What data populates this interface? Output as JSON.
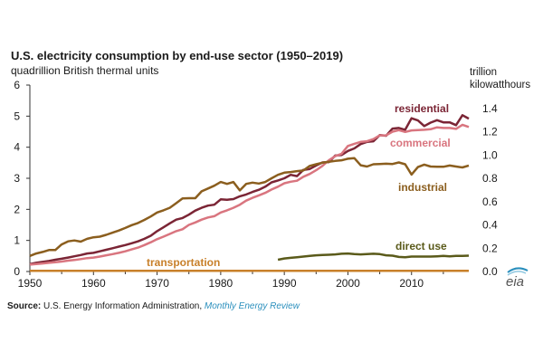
{
  "title": "U.S. electricity consumption by end-use sector (1950–2019)",
  "subtitle": "quadrillion British thermal units",
  "right_axis_unit_line1": "trillion",
  "right_axis_unit_line2": "kilowatthours",
  "source": {
    "label": "Source:",
    "text": "U.S. Energy Information Administration,",
    "link": "Monthly Energy Review"
  },
  "logo": {
    "text": "eia",
    "icon": "eia-logo-icon"
  },
  "chart_data": {
    "type": "line",
    "xlim": [
      1950,
      2019
    ],
    "ylim": [
      0,
      6
    ],
    "y2lim": [
      0,
      1.6
    ],
    "x_ticks": [
      1950,
      1960,
      1970,
      1980,
      1990,
      2000,
      2010
    ],
    "y_ticks": [
      0,
      1,
      2,
      3,
      4,
      5,
      6
    ],
    "y2_ticks": [
      "0.0",
      "0.2",
      "0.4",
      "0.6",
      "0.8",
      "1.0",
      "1.2",
      "1.4"
    ],
    "y2_tick_values": [
      0,
      0.2,
      0.4,
      0.6,
      0.8,
      1.0,
      1.2,
      1.4
    ],
    "grid": false,
    "series": [
      {
        "name": "residential",
        "color": "#7b2535",
        "x": [
          1950,
          1951,
          1952,
          1953,
          1954,
          1955,
          1956,
          1957,
          1958,
          1959,
          1960,
          1961,
          1962,
          1963,
          1964,
          1965,
          1966,
          1967,
          1968,
          1969,
          1970,
          1971,
          1972,
          1973,
          1974,
          1975,
          1976,
          1977,
          1978,
          1979,
          1980,
          1981,
          1982,
          1983,
          1984,
          1985,
          1986,
          1987,
          1988,
          1989,
          1990,
          1991,
          1992,
          1993,
          1994,
          1995,
          1996,
          1997,
          1998,
          1999,
          2000,
          2001,
          2002,
          2003,
          2004,
          2005,
          2006,
          2007,
          2008,
          2009,
          2010,
          2011,
          2012,
          2013,
          2014,
          2015,
          2016,
          2017,
          2018,
          2019
        ],
        "values": [
          0.24,
          0.28,
          0.31,
          0.34,
          0.38,
          0.41,
          0.45,
          0.49,
          0.53,
          0.58,
          0.6,
          0.65,
          0.7,
          0.75,
          0.8,
          0.85,
          0.91,
          0.97,
          1.05,
          1.15,
          1.3,
          1.42,
          1.55,
          1.67,
          1.72,
          1.83,
          1.96,
          2.05,
          2.12,
          2.15,
          2.32,
          2.31,
          2.33,
          2.42,
          2.48,
          2.56,
          2.63,
          2.73,
          2.87,
          2.93,
          3.0,
          3.11,
          3.07,
          3.27,
          3.3,
          3.41,
          3.51,
          3.52,
          3.73,
          3.75,
          3.88,
          3.96,
          4.1,
          4.17,
          4.19,
          4.39,
          4.37,
          4.6,
          4.62,
          4.56,
          4.93,
          4.86,
          4.68,
          4.79,
          4.87,
          4.8,
          4.8,
          4.71,
          5.03,
          4.92
        ]
      },
      {
        "name": "commercial",
        "color": "#d9757f",
        "x": [
          1950,
          1951,
          1952,
          1953,
          1954,
          1955,
          1956,
          1957,
          1958,
          1959,
          1960,
          1961,
          1962,
          1963,
          1964,
          1965,
          1966,
          1967,
          1968,
          1969,
          1970,
          1971,
          1972,
          1973,
          1974,
          1975,
          1976,
          1977,
          1978,
          1979,
          1980,
          1981,
          1982,
          1983,
          1984,
          1985,
          1986,
          1987,
          1988,
          1989,
          1990,
          1991,
          1992,
          1993,
          1994,
          1995,
          1996,
          1997,
          1998,
          1999,
          2000,
          2001,
          2002,
          2003,
          2004,
          2005,
          2006,
          2007,
          2008,
          2009,
          2010,
          2011,
          2012,
          2013,
          2014,
          2015,
          2016,
          2017,
          2018,
          2019
        ],
        "values": [
          0.22,
          0.24,
          0.26,
          0.28,
          0.3,
          0.32,
          0.35,
          0.37,
          0.4,
          0.43,
          0.45,
          0.48,
          0.52,
          0.56,
          0.6,
          0.65,
          0.71,
          0.77,
          0.85,
          0.94,
          1.04,
          1.12,
          1.21,
          1.3,
          1.36,
          1.5,
          1.58,
          1.67,
          1.74,
          1.78,
          1.9,
          1.97,
          2.05,
          2.15,
          2.28,
          2.37,
          2.45,
          2.53,
          2.64,
          2.73,
          2.84,
          2.89,
          2.92,
          3.05,
          3.14,
          3.26,
          3.4,
          3.58,
          3.71,
          3.79,
          4.04,
          4.11,
          4.17,
          4.19,
          4.26,
          4.38,
          4.38,
          4.5,
          4.55,
          4.49,
          4.54,
          4.55,
          4.56,
          4.58,
          4.64,
          4.62,
          4.62,
          4.59,
          4.72,
          4.65
        ]
      },
      {
        "name": "industrial",
        "color": "#8b5e1e",
        "x": [
          1950,
          1951,
          1952,
          1953,
          1954,
          1955,
          1956,
          1957,
          1958,
          1959,
          1960,
          1961,
          1962,
          1963,
          1964,
          1965,
          1966,
          1967,
          1968,
          1969,
          1970,
          1971,
          1972,
          1973,
          1974,
          1975,
          1976,
          1977,
          1978,
          1979,
          1980,
          1981,
          1982,
          1983,
          1984,
          1985,
          1986,
          1987,
          1988,
          1989,
          1990,
          1991,
          1992,
          1993,
          1994,
          1995,
          1996,
          1997,
          1998,
          1999,
          2000,
          2001,
          2002,
          2003,
          2004,
          2005,
          2006,
          2007,
          2008,
          2009,
          2010,
          2011,
          2012,
          2013,
          2014,
          2015,
          2016,
          2017,
          2018,
          2019
        ],
        "values": [
          0.5,
          0.58,
          0.63,
          0.69,
          0.69,
          0.87,
          0.97,
          1.0,
          0.96,
          1.05,
          1.1,
          1.12,
          1.18,
          1.25,
          1.32,
          1.4,
          1.49,
          1.56,
          1.66,
          1.77,
          1.9,
          1.97,
          2.05,
          2.2,
          2.35,
          2.36,
          2.36,
          2.58,
          2.67,
          2.76,
          2.88,
          2.82,
          2.88,
          2.61,
          2.82,
          2.86,
          2.83,
          2.88,
          3.0,
          3.11,
          3.18,
          3.2,
          3.23,
          3.25,
          3.4,
          3.45,
          3.5,
          3.53,
          3.56,
          3.58,
          3.63,
          3.65,
          3.42,
          3.38,
          3.45,
          3.46,
          3.47,
          3.46,
          3.51,
          3.45,
          3.12,
          3.36,
          3.44,
          3.38,
          3.37,
          3.37,
          3.41,
          3.38,
          3.35,
          3.41
        ]
      },
      {
        "name": "direct use",
        "color": "#5a5a1a",
        "x": [
          1989,
          1990,
          1991,
          1992,
          1993,
          1994,
          1995,
          1996,
          1997,
          1998,
          1999,
          2000,
          2001,
          2002,
          2003,
          2004,
          2005,
          2006,
          2007,
          2008,
          2009,
          2010,
          2011,
          2012,
          2013,
          2014,
          2015,
          2016,
          2017,
          2018,
          2019
        ],
        "values": [
          0.38,
          0.42,
          0.44,
          0.46,
          0.48,
          0.5,
          0.52,
          0.53,
          0.54,
          0.55,
          0.57,
          0.58,
          0.56,
          0.55,
          0.56,
          0.57,
          0.56,
          0.52,
          0.51,
          0.47,
          0.46,
          0.48,
          0.48,
          0.48,
          0.48,
          0.49,
          0.5,
          0.49,
          0.5,
          0.5,
          0.51
        ]
      },
      {
        "name": "transportation",
        "color": "#c8802a",
        "x": [
          1950,
          1960,
          1970,
          1980,
          1990,
          2000,
          2010,
          2019
        ],
        "values": [
          0.02,
          0.02,
          0.02,
          0.02,
          0.02,
          0.02,
          0.02,
          0.02
        ]
      }
    ]
  }
}
